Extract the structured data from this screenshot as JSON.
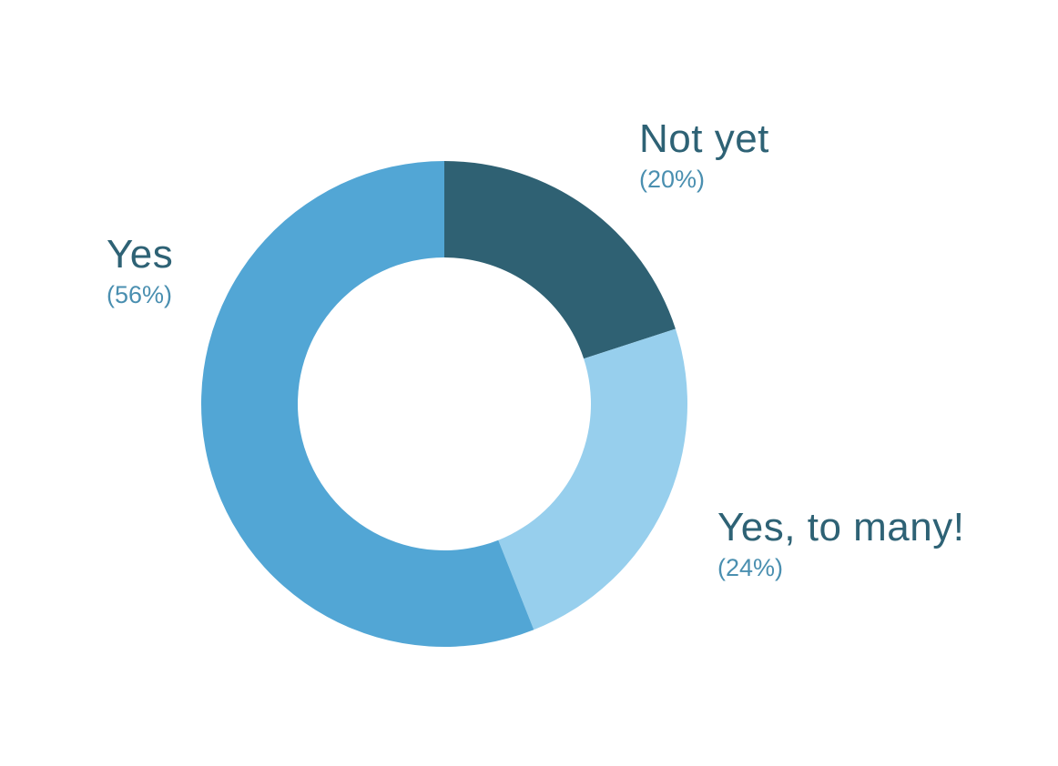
{
  "chart_data": {
    "type": "pie",
    "variant": "donut",
    "title": "",
    "slices": [
      {
        "label": "Not yet",
        "value": 20,
        "value_label": "(20%)",
        "color": "#2f6173"
      },
      {
        "label": "Yes, to many!",
        "value": 24,
        "value_label": "(24%)",
        "color": "#97cfed"
      },
      {
        "label": "Yes",
        "value": 56,
        "value_label": "(56%)",
        "color": "#52a6d5"
      }
    ],
    "start": "top",
    "direction": "clockwise",
    "legend": "none",
    "labels": "outside"
  }
}
